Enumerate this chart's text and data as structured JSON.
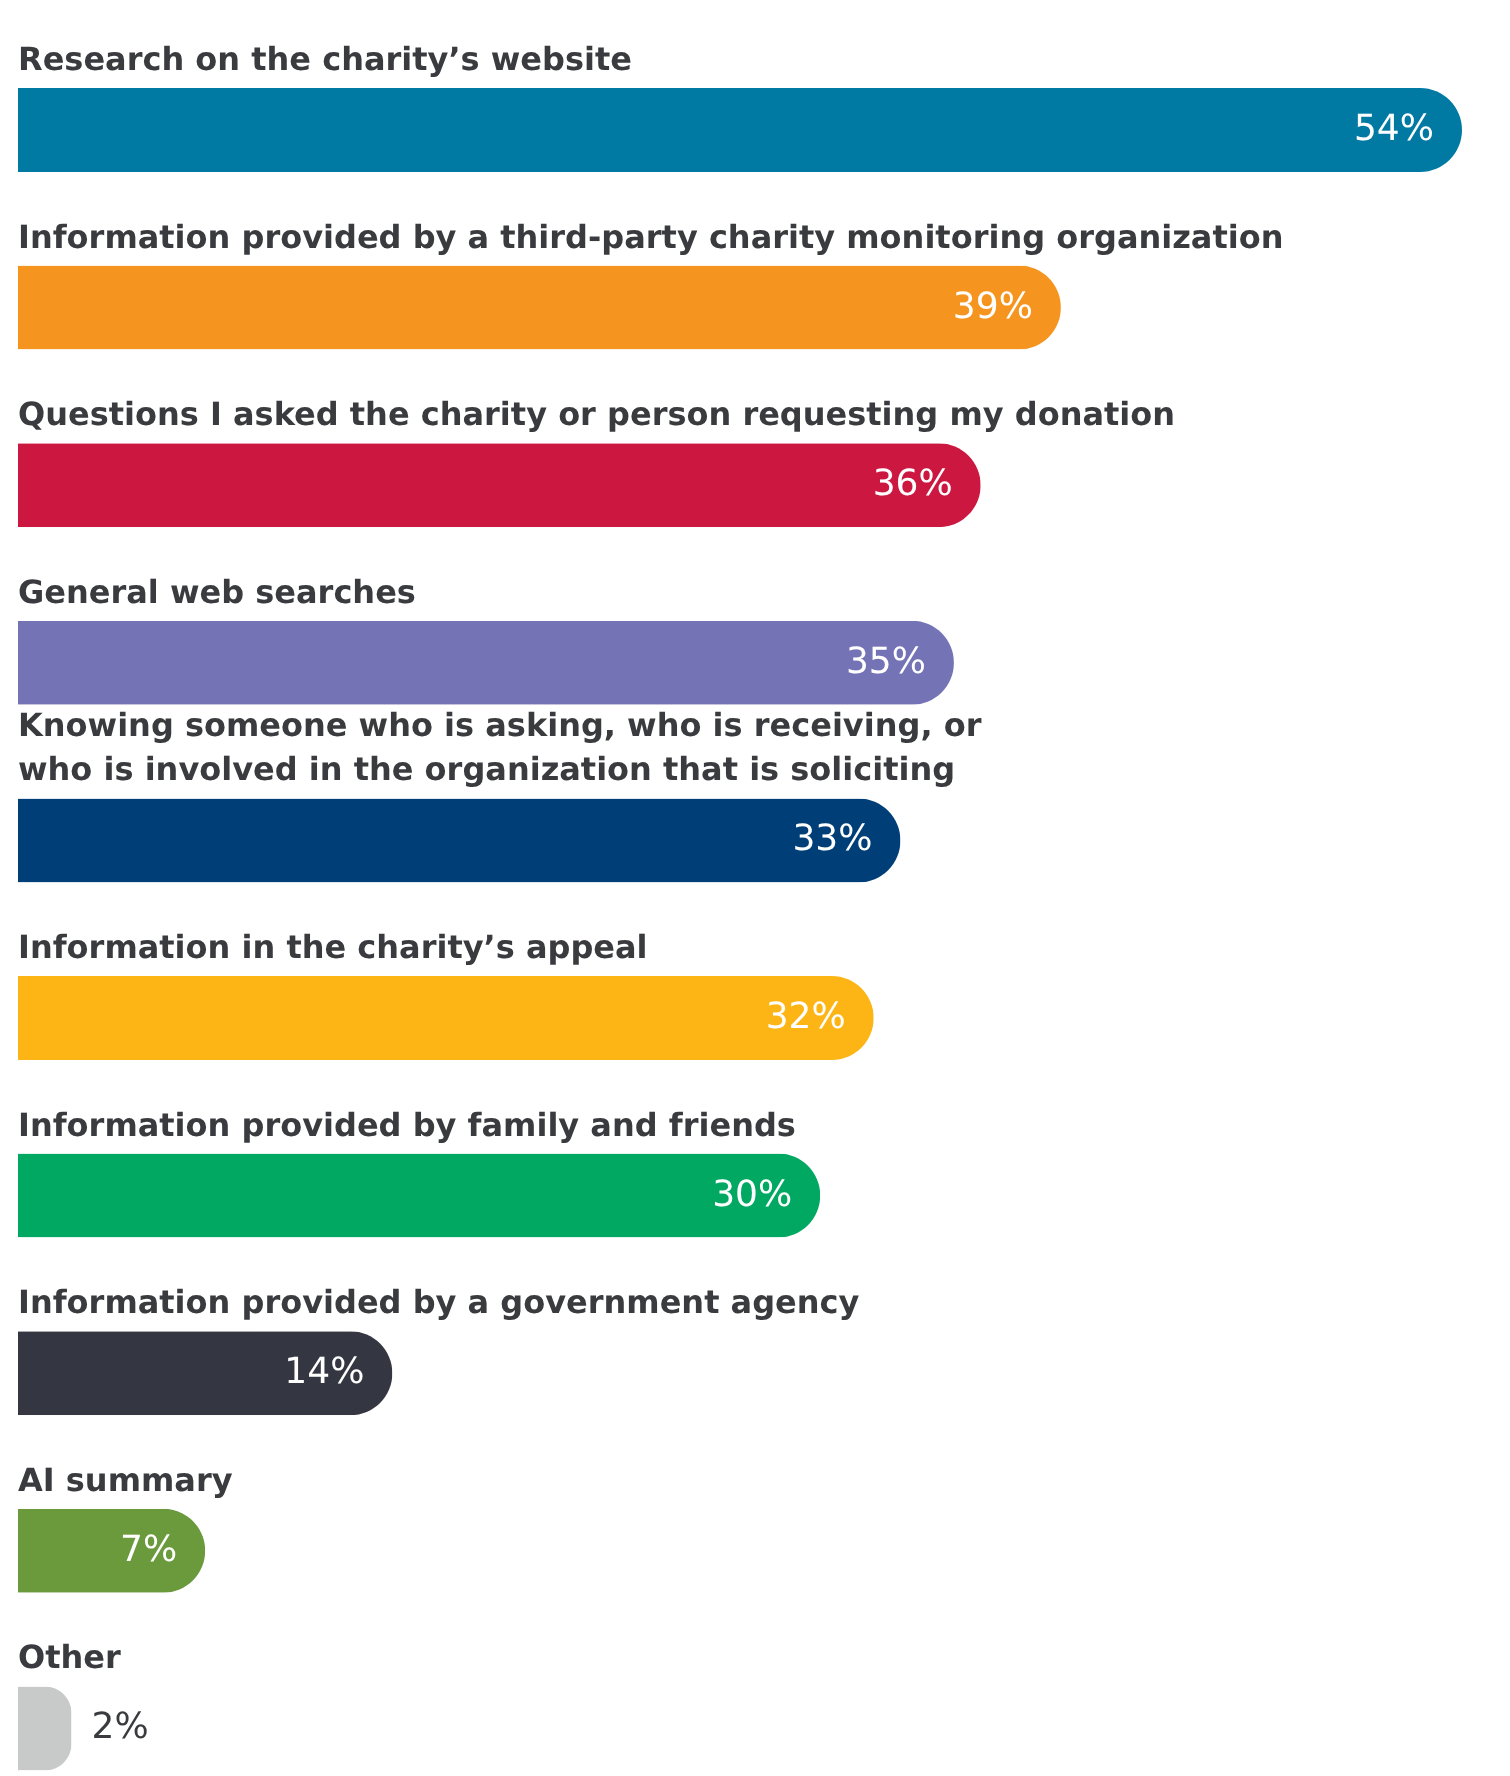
{
  "chart_data": {
    "type": "bar",
    "orientation": "horizontal",
    "categories": [
      "Research on the charity’s website",
      "Information provided by a third-party charity monitoring organization",
      "Questions I asked the charity or person requesting my donation",
      "General web searches",
      "Knowing someone who is asking, who is receiving, or who is involved in the organization that is soliciting",
      "Information in the charity’s appeal",
      "Information provided by family and friends",
      "Information provided by a government agency",
      "AI summary",
      "Other"
    ],
    "values": [
      54,
      39,
      36,
      35,
      33,
      32,
      30,
      14,
      7,
      2
    ],
    "value_labels": [
      "54%",
      "39%",
      "36%",
      "35%",
      "33%",
      "32%",
      "30%",
      "14%",
      "7%",
      "2%"
    ],
    "colors": [
      "#0079a3",
      "#f5951f",
      "#cc1840",
      "#7473b6",
      "#003e77",
      "#fdb515",
      "#00a862",
      "#343741",
      "#6a9a3c",
      "#c8c9c9"
    ]
  }
}
